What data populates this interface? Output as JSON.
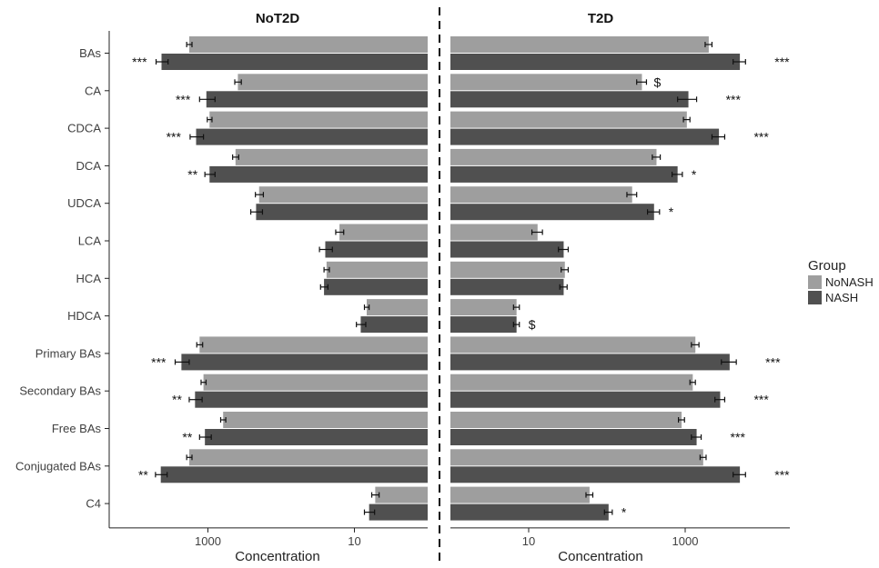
{
  "chart_data": {
    "type": "bar",
    "orientation": "horizontal-mirrored",
    "x_scale": "log10",
    "xlabel": "Concentration",
    "x_ticks": [
      1000,
      10
    ],
    "xlim": [
      1,
      20000
    ],
    "categories": [
      "BAs",
      "CA",
      "CDCA",
      "DCA",
      "UDCA",
      "LCA",
      "HCA",
      "HDCA",
      "Primary BAs",
      "Secondary BAs",
      "Free BAs",
      "Conjugated BAs",
      "C4"
    ],
    "legend": {
      "title": "Group",
      "position": "right",
      "entries": [
        {
          "name": "NoNASH",
          "color": "#9e9e9e"
        },
        {
          "name": "NASH",
          "color": "#505050"
        }
      ]
    },
    "panels": [
      {
        "title": "NoT2D",
        "side": "left",
        "series": [
          {
            "name": "NoNASH",
            "values": [
              1800,
              390,
              950,
              420,
              200,
              16,
              24,
              6.8,
              1300,
              1150,
              620,
              1800,
              5.2
            ],
            "errors": [
              150,
              40,
              70,
              40,
              25,
              2,
              2,
              0.5,
              120,
              90,
              50,
              150,
              0.6
            ]
          },
          {
            "name": "NASH",
            "values": [
              4300,
              1050,
              1450,
              950,
              220,
              25,
              26,
              8.2,
              2300,
              1500,
              1100,
              4400,
              6.3
            ],
            "errors": [
              800,
              250,
              300,
              150,
              40,
              5,
              3,
              1.2,
              500,
              300,
              200,
              800,
              1.0
            ]
          }
        ],
        "significance": [
          "***",
          "***",
          "***",
          "**",
          "",
          "",
          "",
          "",
          "***",
          "**",
          "**",
          "**",
          ""
        ]
      },
      {
        "title": "T2D",
        "side": "right",
        "series": [
          {
            "name": "NoNASH",
            "values": [
              2000,
              280,
              1050,
              430,
              210,
              13,
              29,
              7.0,
              1350,
              1250,
              900,
              1700,
              60
            ],
            "errors": [
              200,
              40,
              100,
              50,
              30,
              2,
              3,
              0.6,
              150,
              100,
              80,
              150,
              6
            ]
          },
          {
            "name": "NASH",
            "values": [
              5000,
              1100,
              2700,
              800,
              400,
              28,
              28,
              7.0,
              3700,
              2800,
              1400,
              5000,
              105
            ],
            "errors": [
              900,
              300,
              500,
              120,
              70,
              4,
              3,
              0.6,
              800,
              400,
              200,
              900,
              12
            ]
          }
        ],
        "significance": [
          "***",
          "***",
          "***",
          "*",
          "*",
          "",
          "",
          "$",
          "***",
          "***",
          "***",
          "***",
          "*"
        ],
        "nonash_markers": [
          "",
          "$",
          "",
          "",
          "",
          "",
          "",
          "",
          "",
          "",
          "",
          "",
          ""
        ]
      }
    ]
  }
}
